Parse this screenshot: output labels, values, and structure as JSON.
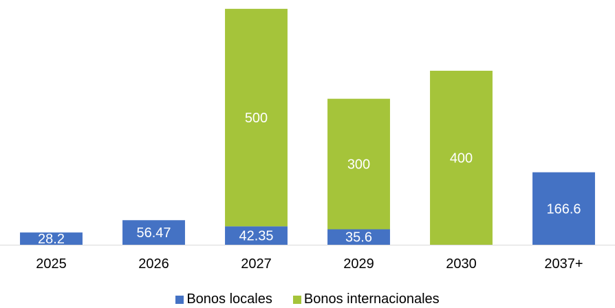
{
  "chart_data": {
    "type": "bar",
    "stacked": true,
    "categories": [
      "2025",
      "2026",
      "2027",
      "2029",
      "2030",
      "2037+"
    ],
    "series": [
      {
        "name": "Bonos locales",
        "color": "#4472C4",
        "values": [
          28.2,
          56.47,
          42.35,
          35.6,
          null,
          166.6
        ],
        "labels": [
          "28.2",
          "56.47",
          "42.35",
          "35.6",
          "",
          "166.6"
        ]
      },
      {
        "name": "Bonos internacionales",
        "color": "#A5C43A",
        "values": [
          null,
          null,
          500,
          300,
          400,
          null
        ],
        "labels": [
          "",
          "",
          "500",
          "300",
          "400",
          ""
        ]
      }
    ],
    "title": "",
    "xlabel": "",
    "ylabel": "",
    "ylim": [
      0,
      550
    ],
    "grid": false,
    "legend_position": "bottom"
  }
}
